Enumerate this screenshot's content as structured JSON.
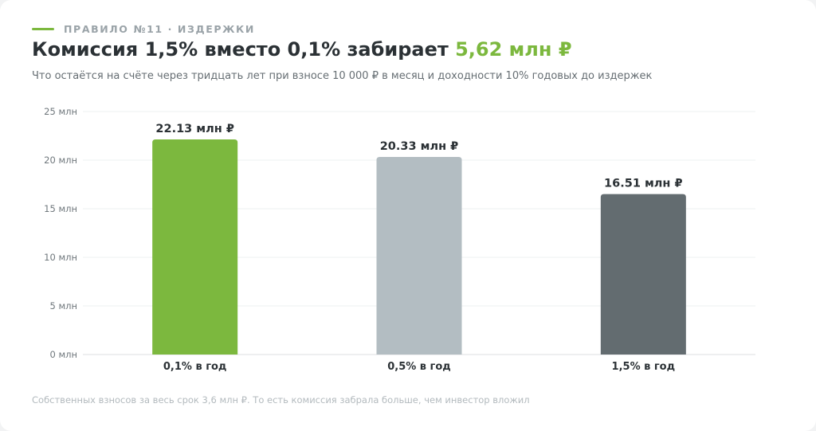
{
  "header": {
    "eyebrow": "Правило №11 · издержки",
    "title_main": "Комиссия 1,5% вместо 0,1% забирает ",
    "title_accent": "5,62 млн ₽",
    "subtitle": "Что остаётся на счёте через тридцать лет при взносе 10 000 ₽ в месяц и доходности 10% годовых до издержек"
  },
  "footnote": "Собственных взносов за весь срок 3,6 млн ₽. То есть комиссия забрала больше, чем инвестор вложил",
  "colors": {
    "accent": "#7cb83e",
    "bar_mid": "#b3bdc2",
    "bar_dark": "#636c70"
  },
  "chart_data": {
    "type": "bar",
    "title": "Комиссия 1,5% вместо 0,1% забирает 5,62 млн ₽",
    "xlabel": "",
    "ylabel": "",
    "categories": [
      "0,1% в год",
      "0,5% в год",
      "1,5% в год"
    ],
    "values": [
      22.13,
      20.33,
      16.51
    ],
    "value_labels": [
      "22.13 млн ₽",
      "20.33 млн ₽",
      "16.51 млн ₽"
    ],
    "bar_colors": [
      "#7cb83e",
      "#b3bdc2",
      "#636c70"
    ],
    "ylim": [
      0,
      25
    ],
    "yticks": [
      0,
      5,
      10,
      15,
      20,
      25
    ],
    "ytick_labels": [
      "0 млн",
      "5 млн",
      "10 млн",
      "15 млн",
      "20 млн",
      "25 млн"
    ],
    "grid": true,
    "legend": "none"
  }
}
